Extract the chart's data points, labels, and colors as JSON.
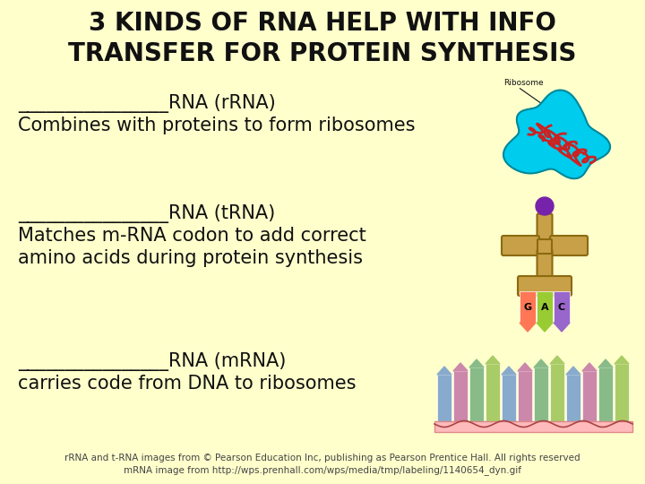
{
  "background_color": "#FFFFCC",
  "title_line1": "3 KINDS OF RNA HELP WITH INFO",
  "title_line2": "TRANSFER FOR PROTEIN SYNTHESIS",
  "title_fontsize": 20,
  "body_font": "Comic Sans MS",
  "body_fontsize": 15,
  "small_fontsize": 7.5,
  "text_color": "#111111",
  "section1_line1": "________________RNA (rRNA)",
  "section1_line2": "Combines with proteins to form ribosomes",
  "section2_line1": "________________RNA (tRNA)",
  "section2_line2": "Matches m-RNA codon to add correct",
  "section2_line3": "amino acids during protein synthesis",
  "section3_line1": "________________RNA (mRNA)",
  "section3_line2": "carries code from DNA to ribosomes",
  "ribosome_label": "Ribosome",
  "codon_colors": [
    "#FF7755",
    "#99CC33",
    "#9966CC"
  ],
  "codon_labels": [
    "G",
    "A",
    "C"
  ],
  "mrna_colors": [
    "#88AACC",
    "#CC88AA",
    "#88BB88",
    "#AACC66",
    "#88AACC",
    "#CC88AA",
    "#88BB88",
    "#AACC66",
    "#88AACC",
    "#CC88AA",
    "#88BB88",
    "#AACC66"
  ],
  "footer1": "rRNA and t-RNA images from © Pearson Education Inc, publishing as Pearson Prentice Hall. All rights reserved",
  "footer2": "mRNA image from http://wps.prenhall.com/wps/media/tmp/labeling/1140654_dyn.gif"
}
